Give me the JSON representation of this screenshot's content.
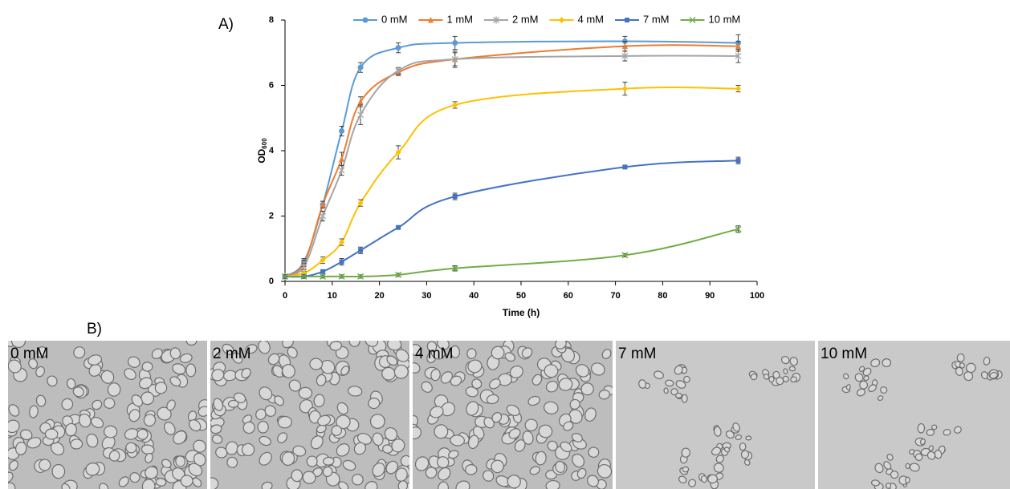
{
  "label_a": "A)",
  "label_b": "B)",
  "chart_data": {
    "type": "line",
    "x_label": "Time (h)",
    "y_label": "OD",
    "y_label_sub": "600",
    "x": [
      0,
      4,
      8,
      12,
      16,
      24,
      36,
      72,
      96
    ],
    "xlim": [
      0,
      100
    ],
    "ylim": [
      0,
      8
    ],
    "xticks": [
      0,
      10,
      20,
      30,
      40,
      50,
      60,
      70,
      80,
      90,
      100
    ],
    "yticks": [
      0,
      2,
      4,
      6,
      8
    ],
    "series": [
      {
        "name": "0 mM",
        "color": "#5b9bd5",
        "marker": "circle",
        "values": [
          0.15,
          0.6,
          2.35,
          4.6,
          6.55,
          7.15,
          7.3,
          7.35,
          7.3
        ],
        "errors": [
          0.05,
          0.1,
          0.1,
          0.15,
          0.15,
          0.15,
          0.2,
          0.15,
          0.25
        ]
      },
      {
        "name": "1 mM",
        "color": "#ed7d31",
        "marker": "triangle",
        "values": [
          0.15,
          0.55,
          2.35,
          3.75,
          5.5,
          6.4,
          6.8,
          7.2,
          7.2
        ],
        "errors": [
          0.05,
          0.1,
          0.1,
          0.2,
          0.15,
          0.1,
          0.2,
          0.15,
          0.15
        ]
      },
      {
        "name": "2 mM",
        "color": "#a5a5a5",
        "marker": "star",
        "values": [
          0.15,
          0.45,
          2.0,
          3.4,
          5.1,
          6.45,
          6.8,
          6.9,
          6.9
        ],
        "errors": [
          0.05,
          0.1,
          0.15,
          0.15,
          0.3,
          0.1,
          0.25,
          0.15,
          0.2
        ]
      },
      {
        "name": "4 mM",
        "color": "#ffc000",
        "marker": "diamond",
        "values": [
          0.15,
          0.25,
          0.65,
          1.2,
          2.4,
          3.95,
          5.4,
          5.9,
          5.9
        ],
        "errors": [
          0.05,
          0.05,
          0.1,
          0.1,
          0.1,
          0.2,
          0.1,
          0.2,
          0.1
        ]
      },
      {
        "name": "7 mM",
        "color": "#4472c4",
        "marker": "square",
        "values": [
          0.15,
          0.15,
          0.3,
          0.6,
          0.95,
          1.65,
          2.6,
          3.5,
          3.7
        ],
        "errors": [
          0.05,
          0.05,
          0.05,
          0.1,
          0.1,
          0.05,
          0.1,
          0.05,
          0.1
        ]
      },
      {
        "name": "10 mM",
        "color": "#70ad47",
        "marker": "cross",
        "values": [
          0.15,
          0.15,
          0.15,
          0.15,
          0.15,
          0.2,
          0.4,
          0.8,
          1.6
        ],
        "errors": [
          0.05,
          0.05,
          0.05,
          0.05,
          0.05,
          0.05,
          0.08,
          0.05,
          0.1
        ]
      }
    ]
  },
  "micrographs": {
    "labels": [
      "0 mM",
      "2 mM",
      "4 mM",
      "7 mM",
      "10 mM"
    ]
  }
}
